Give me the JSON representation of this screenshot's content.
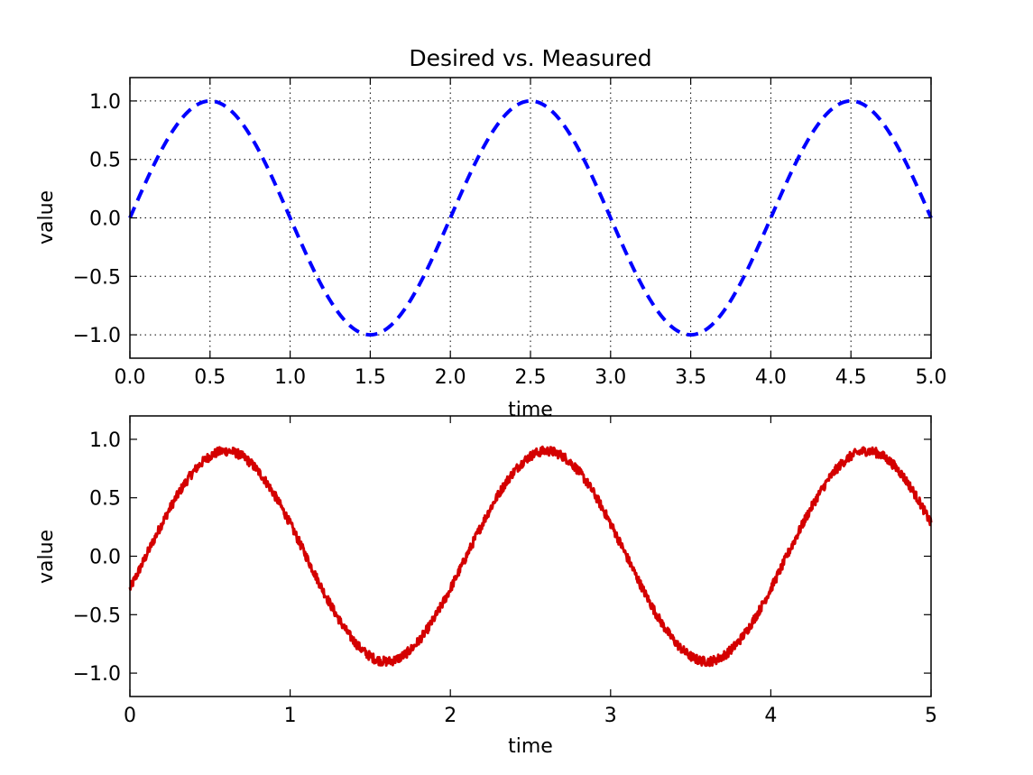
{
  "chart_data": [
    {
      "type": "line",
      "title": "Desired vs. Measured",
      "xlabel": "time",
      "ylabel": "value",
      "xlim": [
        0.0,
        5.0
      ],
      "ylim": [
        -1.2,
        1.2
      ],
      "grid": true,
      "x_tick_labels": [
        "0.0",
        "0.5",
        "1.0",
        "1.5",
        "2.0",
        "2.5",
        "3.0",
        "3.5",
        "4.0",
        "4.5",
        "5.0"
      ],
      "y_tick_labels": [
        "1.0",
        "0.5",
        "0.0",
        "−0.5",
        "−1.0"
      ],
      "x_ticks": [
        0.0,
        0.5,
        1.0,
        1.5,
        2.0,
        2.5,
        3.0,
        3.5,
        4.0,
        4.5,
        5.0
      ],
      "y_ticks": [
        1.0,
        0.5,
        0.0,
        -0.5,
        -1.0
      ],
      "series": [
        {
          "name": "desired",
          "style": "dashed",
          "color": "#0000ff",
          "function": "sin(pi*t)",
          "x": [
            0.0,
            0.25,
            0.5,
            0.75,
            1.0,
            1.25,
            1.5,
            1.75,
            2.0,
            2.25,
            2.5,
            2.75,
            3.0,
            3.25,
            3.5,
            3.75,
            4.0,
            4.25,
            4.5,
            4.75,
            5.0
          ],
          "values": [
            0.0,
            0.707,
            1.0,
            0.707,
            0.0,
            -0.707,
            -1.0,
            -0.707,
            0.0,
            0.707,
            1.0,
            0.707,
            0.0,
            -0.707,
            -1.0,
            -0.707,
            0.0,
            0.707,
            1.0,
            0.707,
            0.0
          ]
        }
      ]
    },
    {
      "type": "line",
      "title": "",
      "xlabel": "time",
      "ylabel": "value",
      "xlim": [
        0,
        5
      ],
      "ylim": [
        -1.2,
        1.2
      ],
      "grid": false,
      "x_tick_labels": [
        "0",
        "1",
        "2",
        "3",
        "4",
        "5"
      ],
      "y_tick_labels": [
        "1.0",
        "0.5",
        "0.0",
        "−0.5",
        "−1.0"
      ],
      "x_ticks": [
        0,
        1,
        2,
        3,
        4,
        5
      ],
      "y_ticks": [
        1.0,
        0.5,
        0.0,
        -0.5,
        -1.0
      ],
      "series": [
        {
          "name": "measured",
          "style": "solid-noisy",
          "color": "#d40000",
          "function": "0.9*sin(pi*(t-0.1)) + noise",
          "x": [
            0.0,
            0.25,
            0.5,
            0.75,
            1.0,
            1.25,
            1.5,
            1.75,
            2.0,
            2.25,
            2.5,
            2.75,
            3.0,
            3.25,
            3.5,
            3.75,
            4.0,
            4.25,
            4.5,
            4.75,
            5.0
          ],
          "values": [
            -0.28,
            0.45,
            0.88,
            0.82,
            0.28,
            -0.45,
            -0.88,
            -0.82,
            -0.28,
            0.45,
            0.88,
            0.82,
            0.28,
            -0.45,
            -0.88,
            -0.82,
            -0.28,
            0.45,
            0.88,
            0.82,
            0.28
          ]
        }
      ]
    }
  ]
}
